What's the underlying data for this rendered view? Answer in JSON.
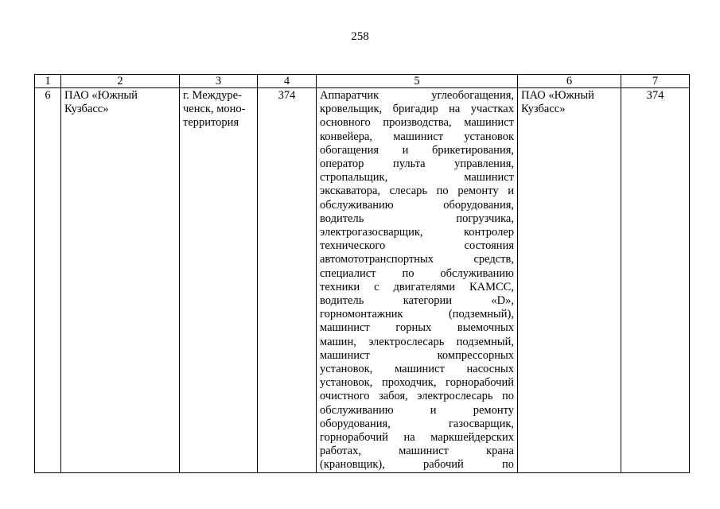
{
  "page_number": "258",
  "header": [
    "1",
    "2",
    "3",
    "4",
    "5",
    "6",
    "7"
  ],
  "row": {
    "num": "6",
    "org": [
      "ПАО «Южный",
      "Кузбасс»"
    ],
    "place": [
      "г. Междуре-",
      "ченск, моно-",
      "территория"
    ],
    "count": "374",
    "professions": [
      "Аппаратчик углеобогащения,",
      "кровельщик, бригадир на участках",
      "основного производства, машинист",
      "конвейера, машинист установок",
      "обогащения и брикетирования,",
      "оператор пульта управления,",
      "стропальщик, машинист",
      "экскаватора, слесарь по ремонту и",
      "обслуживанию оборудования,",
      "водитель погрузчика,",
      "электрогазосварщик, контролер",
      "технического состояния",
      "автомототранспортных средств,",
      "специалист по обслуживанию",
      "техники с двигателями КАМСС,",
      "водитель категории «D»,",
      "горномонтажник (подземный),",
      "машинист горных выемочных",
      "машин, электрослесарь подземный,",
      "машинист компрессорных",
      "установок, машинист насосных",
      "установок, проходчик, горнорабочий",
      "очистного забоя, электрослесарь по",
      "обслуживанию и ремонту",
      "оборудования, газосварщик,",
      "горнорабочий на маркшейдерских",
      "работах, машинист крана",
      "(крановщик), рабочий по"
    ],
    "org2": [
      "ПАО «Южный",
      "Кузбасс»"
    ],
    "count2": "374"
  }
}
